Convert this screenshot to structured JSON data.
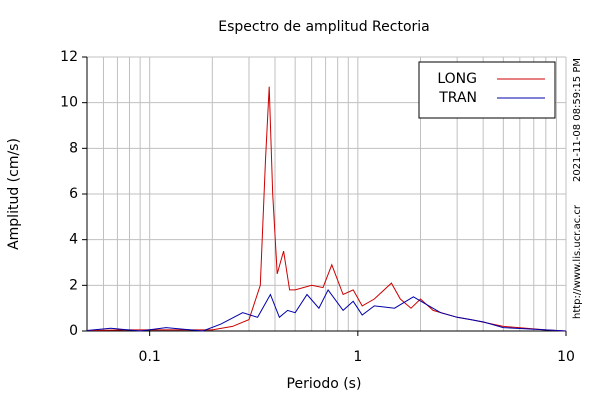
{
  "chart_data": {
    "type": "line",
    "title": "Espectro de amplitud Rectoria",
    "x_label": "Periodo (s)",
    "y_label": "Amplitud (cm/s)",
    "timestamp": "2021-11-08 08:59:15 PM",
    "source": "http://www.lis.ucr.ac.cr",
    "log_x": true,
    "grid": true,
    "legend": "upper right",
    "xlim": [
      0.05,
      10
    ],
    "xticks": [
      0.1,
      1,
      10
    ],
    "ylim": [
      0,
      12
    ],
    "yticks": [
      0,
      2,
      4,
      6,
      8,
      10,
      12
    ],
    "series": [
      {
        "name": "LONG",
        "color": "#cc0000",
        "x": [
          0.05,
          0.08,
          0.12,
          0.2,
          0.25,
          0.3,
          0.34,
          0.36,
          0.375,
          0.39,
          0.41,
          0.44,
          0.47,
          0.5,
          0.6,
          0.68,
          0.75,
          0.85,
          0.95,
          1.05,
          1.2,
          1.45,
          1.6,
          1.8,
          2.0,
          2.3,
          3.0,
          3.5,
          5.0,
          8.0,
          10
        ],
        "values": [
          0.02,
          0.05,
          0.05,
          0.05,
          0.2,
          0.5,
          2.0,
          7.5,
          10.7,
          6.0,
          2.5,
          3.5,
          1.8,
          1.8,
          2.0,
          1.9,
          2.9,
          1.6,
          1.8,
          1.1,
          1.4,
          2.1,
          1.4,
          1.0,
          1.4,
          0.9,
          0.6,
          0.5,
          0.2,
          0.05,
          0
        ]
      },
      {
        "name": "TRAN",
        "color": "#0000aa",
        "x": [
          0.05,
          0.065,
          0.09,
          0.12,
          0.18,
          0.22,
          0.28,
          0.33,
          0.38,
          0.42,
          0.46,
          0.5,
          0.57,
          0.65,
          0.72,
          0.85,
          0.95,
          1.05,
          1.2,
          1.5,
          1.85,
          2.1,
          2.5,
          3.0,
          4.0,
          5.0,
          8.0,
          10
        ],
        "values": [
          0.02,
          0.12,
          0.0,
          0.15,
          0.0,
          0.3,
          0.8,
          0.6,
          1.6,
          0.6,
          0.9,
          0.8,
          1.6,
          1.0,
          1.8,
          0.9,
          1.3,
          0.7,
          1.1,
          1.0,
          1.5,
          1.2,
          0.8,
          0.6,
          0.4,
          0.15,
          0.05,
          0
        ]
      }
    ]
  }
}
